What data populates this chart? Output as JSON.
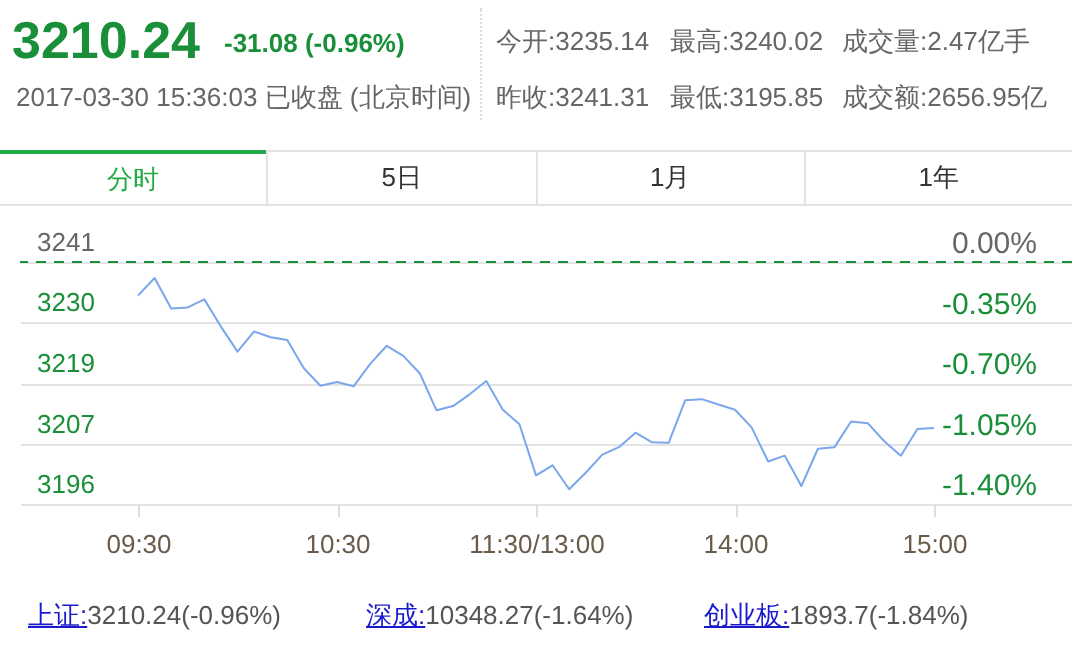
{
  "chart_data": {
    "type": "line",
    "title": "3210.24",
    "subtitle": "-31.08 (-0.96%)",
    "annotations": [
      "2017-03-30 15:36:03 已收盘 (北京时间)",
      "今开:3235.14",
      "最高:3240.02",
      "成交量:2.47亿手",
      "昨收:3241.31",
      "最低:3195.85",
      "成交额:2656.95亿",
      "分时",
      "5日",
      "1月",
      "1年",
      "上证:3210.24(-0.96%)",
      "深成:10348.27(-1.64%)",
      "创业板:1893.7(-1.84%)"
    ],
    "categories": [
      "09:30",
      null,
      null,
      null,
      null,
      null,
      null,
      null,
      null,
      null,
      null,
      null,
      "10:30",
      null,
      null,
      null,
      null,
      null,
      null,
      null,
      null,
      null,
      null,
      null,
      "11:30/13:00",
      null,
      null,
      null,
      null,
      null,
      null,
      null,
      null,
      null,
      null,
      null,
      "14:00",
      null,
      null,
      null,
      null,
      null,
      null,
      null,
      null,
      null,
      null,
      null,
      "15:00"
    ],
    "series": [
      {
        "color": "#7aa6ec",
        "values": [
          3235.0,
          3238.3,
          3232.6,
          3232.8,
          3234.3,
          3229.2,
          3224.5,
          3228.3,
          3227.2,
          3226.7,
          3221.4,
          3218.1,
          3218.8,
          3218.0,
          3222.2,
          3225.6,
          3223.7,
          3220.4,
          3213.5,
          3214.3,
          3216.5,
          3219.0,
          3213.6,
          3210.9,
          3201.3,
          3203.2,
          3198.7,
          3201.8,
          3205.2,
          3206.6,
          3209.3,
          3207.5,
          3207.4,
          3215.4,
          3215.6,
          3214.6,
          3213.6,
          3210.3,
          3203.9,
          3205.0,
          3199.3,
          3206.3,
          3206.6,
          3211.4,
          3211.1,
          3207.7,
          3205.0,
          3210.0,
          3210.2
        ]
      }
    ],
    "ylim": [
      3195.94,
      3241.31
    ],
    "yticks": [
      {
        "value": 3195.94,
        "label": "3196"
      },
      {
        "value": 3207.28,
        "label": "3207"
      },
      {
        "value": 3218.62,
        "label": "3219"
      },
      {
        "value": 3229.97,
        "label": "3230"
      },
      {
        "value": 3241.31,
        "label": "3241"
      }
    ],
    "y2lim": [
      -1.4,
      0
    ],
    "y2ticks": [
      {
        "value": -1.4,
        "label": "-1.40%"
      },
      {
        "value": -1.05,
        "label": "-1.05%"
      },
      {
        "value": -0.7,
        "label": "-0.70%"
      },
      {
        "value": -0.35,
        "label": "-0.35%"
      },
      {
        "value": 0,
        "label": "0.00%"
      }
    ],
    "ref_lines": [
      {
        "axis": "y",
        "value": 3241.31,
        "color": "#1a8f3a",
        "line_style": "dashed"
      }
    ],
    "grid": "y",
    "marker": "none",
    "line_style": "solid"
  }
}
